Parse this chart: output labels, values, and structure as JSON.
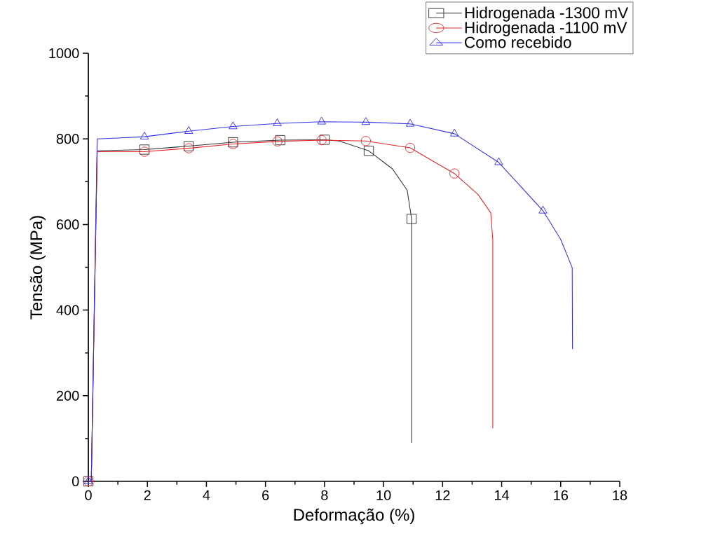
{
  "chart_data": {
    "type": "line",
    "xlabel": "Deformação (%)",
    "ylabel": "Tensão (MPa)",
    "xlim": [
      0,
      18
    ],
    "xticks": [
      0,
      2,
      4,
      6,
      8,
      10,
      12,
      14,
      16,
      18
    ],
    "ylim": [
      0,
      1000
    ],
    "yticks": [
      0,
      200,
      400,
      600,
      800,
      1000
    ],
    "legend": "top right",
    "grid": false,
    "series": [
      {
        "name": "Hidrogenada -1300 mV",
        "color": "#333333",
        "marker": "square",
        "x": [
          0,
          0.1,
          0.3,
          1.9,
          3.4,
          4.9,
          6.5,
          8.0,
          8.5,
          9.5,
          10.3,
          10.8,
          10.95,
          10.95
        ],
        "values": [
          0,
          0,
          772,
          775,
          783,
          792,
          797,
          798,
          795,
          772,
          730,
          680,
          613,
          90
        ]
      },
      {
        "name": "Hidrogenada -1100 mV",
        "color": "#e8262a",
        "marker": "circle",
        "x": [
          0,
          0.1,
          0.3,
          1.9,
          3.4,
          4.9,
          6.4,
          7.9,
          9.4,
          10.9,
          12.4,
          13.2,
          13.63,
          13.7,
          13.7
        ],
        "values": [
          0,
          0,
          770,
          770,
          778,
          788,
          794,
          797,
          795,
          779,
          719,
          670,
          627,
          563,
          124
        ]
      },
      {
        "name": "Como recebido",
        "color": "#3333e6",
        "marker": "triangle",
        "x": [
          0,
          0.1,
          0.3,
          1.0,
          1.9,
          3.4,
          4.9,
          6.4,
          7.9,
          9.4,
          10.9,
          12.4,
          13.9,
          15.4,
          16.0,
          16.39,
          16.4
        ],
        "values": [
          0,
          0,
          800,
          802,
          805,
          818,
          829,
          836,
          840,
          839,
          835,
          812,
          745,
          632,
          565,
          499,
          309
        ]
      }
    ]
  }
}
